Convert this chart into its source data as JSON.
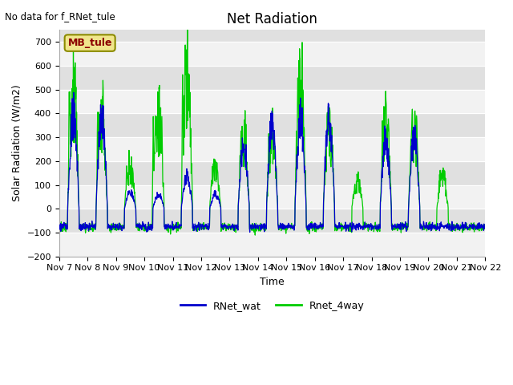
{
  "title": "Net Radiation",
  "ylabel": "Solar Radiation (W/m2)",
  "xlabel": "Time",
  "no_data_text": "No data for f_RNet_tule",
  "mb_tule_label": "MB_tule",
  "ylim": [
    -200,
    750
  ],
  "yticks": [
    -200,
    -100,
    0,
    100,
    200,
    300,
    400,
    500,
    600,
    700
  ],
  "xticklabels": [
    "Nov 7",
    "Nov 8",
    "Nov 9",
    "Nov 10",
    "Nov 11",
    "Nov 12",
    "Nov 13",
    "Nov 14",
    "Nov 15",
    "Nov 16",
    "Nov 17",
    "Nov 18",
    "Nov 19",
    "Nov 20",
    "Nov 21",
    "Nov 22"
  ],
  "legend_entries": [
    "RNet_wat",
    "Rnet_4way"
  ],
  "line_colors": [
    "#0000cc",
    "#00cc00"
  ],
  "background_color": "#ffffff",
  "band_light": "#f2f2f2",
  "band_dark": "#e0e0e0",
  "title_fontsize": 12,
  "label_fontsize": 9,
  "tick_fontsize": 8,
  "mb_tule_box_color": "#f0e68c",
  "mb_tule_text_color": "#8b0000",
  "mb_tule_edge_color": "#8b8b00"
}
